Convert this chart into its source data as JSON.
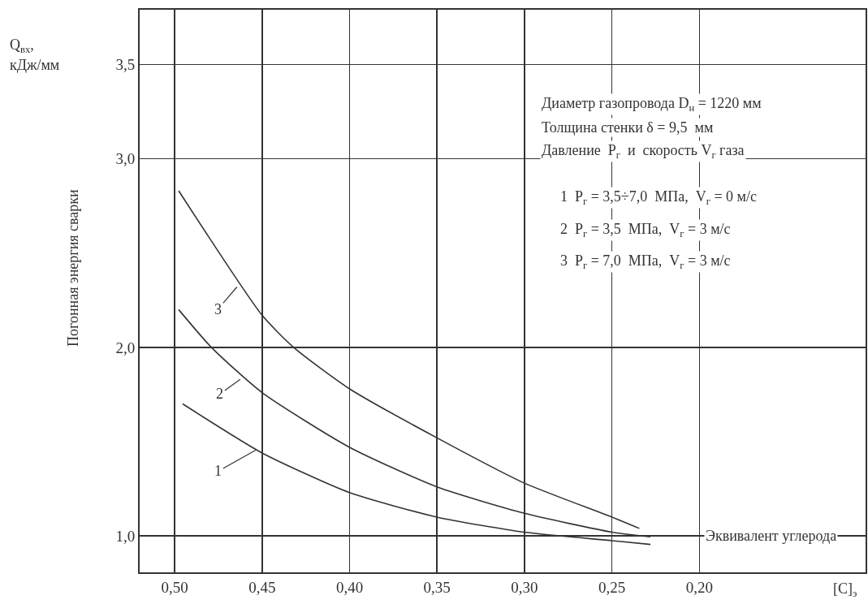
{
  "chart_data": {
    "type": "line",
    "ylabel": "Погонная энергия сварки",
    "xlabel": "[C]$_{э}$",
    "xlim": [
      0.52,
      0.105
    ],
    "ylim": [
      0.807,
      3.79
    ],
    "xticks": [
      {
        "value": 0.5,
        "label": "0,50"
      },
      {
        "value": 0.45,
        "label": "0,45"
      },
      {
        "value": 0.4,
        "label": "0,40"
      },
      {
        "value": 0.35,
        "label": "0,35"
      },
      {
        "value": 0.3,
        "label": "0,30"
      },
      {
        "value": 0.25,
        "label": "0,25"
      },
      {
        "value": 0.2,
        "label": "0,20"
      }
    ],
    "yticks": [
      {
        "value": 1,
        "label": "1,0"
      },
      {
        "value": 2,
        "label": "2,0"
      },
      {
        "value": 3,
        "label": "3,0"
      },
      {
        "value": 3.5,
        "label": "3,5"
      }
    ],
    "grid": true,
    "marker": "none",
    "line_style": "solid",
    "series": [
      {
        "color": "#333333",
        "x": [
          0.4954,
          0.45,
          0.4,
          0.35,
          0.3,
          0.25,
          0.228
        ],
        "values": [
          1.7,
          1.44,
          1.23,
          1.1,
          1.02,
          0.975,
          0.955
        ]
      },
      {
        "color": "#333333",
        "x": [
          0.4977,
          0.479,
          0.45,
          0.4,
          0.35,
          0.3,
          0.25,
          0.228
        ],
        "values": [
          2.2,
          2.0,
          1.76,
          1.47,
          1.26,
          1.12,
          1.02,
          0.995
        ]
      },
      {
        "color": "#333333",
        "x": [
          0.4977,
          0.45,
          0.432,
          0.4,
          0.35,
          0.3,
          0.25,
          0.2343
        ],
        "values": [
          2.83,
          2.17,
          2.0,
          1.78,
          1.52,
          1.28,
          1.1,
          1.04
        ]
      }
    ],
    "annotations": [
      {
        "text": "1",
        "x": 0.4537,
        "y": 1.455
      },
      {
        "text": "2",
        "x": 0.4625,
        "y": 1.83
      },
      {
        "text": "3",
        "x": 0.4644,
        "y": 2.32
      },
      "Q$_{вх}$,",
      "кДж/мм",
      "Эквивалент углерода",
      "Диаметр газопровода D$_{н}$ = 1220 мм",
      "Толщина стенки δ = 9,5  мм",
      "Давление  P$_{г}$  и  скорость V$_{г}$ газа",
      "1  P$_{г}$ = 3,5÷7,0  МПа,  V$_{г}$ = 0 м/с",
      "2  P$_{г}$ = 3,5  МПа,  V$_{г}$ = 3 м/с",
      "3  P$_{г}$ = 7,0  МПа,  V$_{г}$ = 3 м/с"
    ]
  }
}
